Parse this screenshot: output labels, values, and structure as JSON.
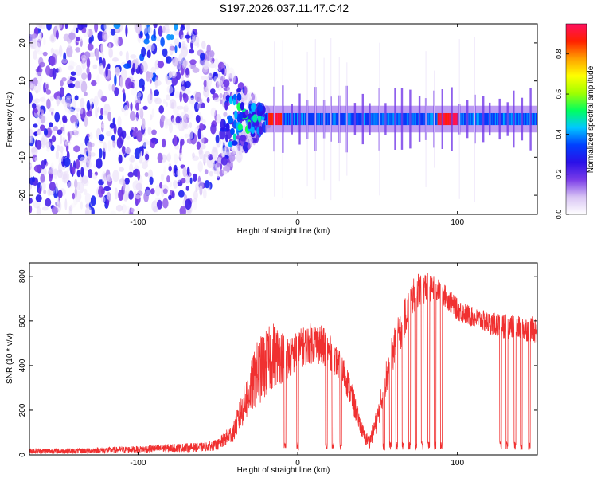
{
  "title": "S197.2026.037.11.47.C42",
  "chart_data": [
    {
      "type": "heatmap",
      "title": "S197.2026.037.11.47.C42",
      "xlabel": "Height of straight line (km)",
      "ylabel": "Frequency (Hz)",
      "xlim": [
        -168,
        150
      ],
      "ylim": [
        -25,
        25
      ],
      "xticks": [
        -100,
        0,
        100
      ],
      "yticks": [
        -20,
        -10,
        0,
        10,
        20
      ],
      "ridge": {
        "description_values_hz": 0,
        "ridge_start_km": -20,
        "ridge_end_km": 150,
        "peak_amplitude_segments_km": [
          [
            -18,
            -10
          ],
          [
            88,
            100
          ]
        ]
      },
      "colorbar": {
        "label": "Normalized spectral amplitude",
        "range": [
          0.0,
          0.95
        ],
        "ticks": [
          0.0,
          0.2,
          0.4,
          0.6,
          0.8
        ],
        "colormap": [
          "#ffffff",
          "#d8c4f4",
          "#7a3ce8",
          "#2a10e8",
          "#0040ff",
          "#00c8ff",
          "#00ff60",
          "#a0ff00",
          "#ffff00",
          "#ffa000",
          "#ff2000",
          "#ff1060"
        ]
      }
    },
    {
      "type": "line",
      "xlabel": "Height of straight line (km)",
      "ylabel": "SNR (10 * v/v)",
      "xlim": [
        -168,
        150
      ],
      "ylim": [
        0,
        860
      ],
      "xticks": [
        -100,
        0,
        100
      ],
      "yticks": [
        0,
        200,
        400,
        600,
        800
      ],
      "series": [
        {
          "name": "SNR",
          "color": "#f03030",
          "envelope_x": [
            -168,
            -140,
            -120,
            -100,
            -80,
            -60,
            -50,
            -40,
            -35,
            -30,
            -25,
            -20,
            -15,
            -10,
            -5,
            0,
            5,
            10,
            15,
            20,
            25,
            30,
            35,
            38,
            42,
            45,
            50,
            55,
            60,
            65,
            70,
            75,
            80,
            85,
            90,
            95,
            100,
            110,
            120,
            130,
            140,
            150
          ],
          "envelope_low": [
            5,
            5,
            8,
            10,
            12,
            15,
            20,
            60,
            120,
            180,
            220,
            250,
            300,
            320,
            340,
            380,
            400,
            410,
            400,
            380,
            340,
            280,
            170,
            120,
            40,
            30,
            100,
            250,
            380,
            480,
            600,
            660,
            680,
            690,
            680,
            640,
            600,
            570,
            540,
            520,
            510,
            500
          ],
          "envelope_high": [
            30,
            30,
            35,
            40,
            50,
            55,
            70,
            150,
            280,
            400,
            520,
            560,
            600,
            560,
            520,
            560,
            580,
            600,
            580,
            540,
            480,
            420,
            300,
            200,
            110,
            90,
            220,
            420,
            560,
            660,
            760,
            820,
            820,
            800,
            780,
            740,
            700,
            660,
            640,
            630,
            620,
            620
          ],
          "dropouts_km": [
            -8,
            0,
            18,
            22,
            27,
            54,
            58,
            62,
            66,
            70,
            74,
            78,
            82,
            86,
            90,
            127,
            131,
            136,
            140,
            145
          ]
        }
      ]
    }
  ]
}
